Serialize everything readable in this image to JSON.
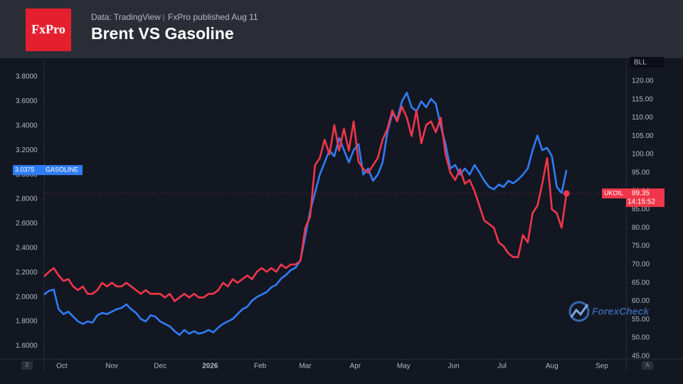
{
  "header": {
    "logo": "FxPro",
    "source": "Data: TradingView",
    "publisher": "FxPro published Aug 11"
  },
  "chart_data": {
    "type": "line",
    "title": "Brent VS Gasoline",
    "x": [
      -11,
      -8,
      -5,
      -2,
      1,
      4,
      7,
      10,
      13,
      16,
      19,
      22,
      25,
      28,
      31,
      34,
      37,
      40,
      43,
      46,
      49,
      52,
      55,
      58,
      61,
      64,
      67,
      70,
      73,
      76,
      79,
      82,
      85,
      88,
      91,
      94,
      97,
      100,
      103,
      106,
      109,
      112,
      115,
      118,
      121,
      124,
      127,
      130,
      133,
      136,
      139,
      142,
      145,
      148,
      151,
      154,
      157,
      160,
      163,
      166,
      169,
      172,
      175,
      178,
      181,
      184,
      187,
      190,
      193,
      196,
      199,
      202,
      205,
      208,
      211,
      214,
      217,
      220,
      223,
      226,
      229,
      232,
      235,
      238,
      241,
      244,
      247,
      250,
      253,
      256,
      259,
      262,
      265,
      268,
      271,
      274,
      277,
      280,
      283,
      286,
      289,
      292,
      295,
      298,
      301,
      304,
      307,
      310,
      313
    ],
    "xlim": [
      -11,
      350
    ],
    "xticks": [
      {
        "value": 0,
        "label": "Oct"
      },
      {
        "value": 31,
        "label": "Nov"
      },
      {
        "value": 61,
        "label": "Dec"
      },
      {
        "value": 92,
        "label": "2026"
      },
      {
        "value": 123,
        "label": "Feb"
      },
      {
        "value": 151,
        "label": "Mar"
      },
      {
        "value": 182,
        "label": "Apr"
      },
      {
        "value": 212,
        "label": "May"
      },
      {
        "value": 243,
        "label": "Jun"
      },
      {
        "value": 273,
        "label": "Jul"
      },
      {
        "value": 304,
        "label": "Aug"
      },
      {
        "value": 335,
        "label": "Sep"
      }
    ],
    "ylim": [
      1.492,
      3.934
    ],
    "yticks": [
      {
        "value": 1.6,
        "label": "1.6000"
      },
      {
        "value": 1.8,
        "label": "1.8000"
      },
      {
        "value": 2.0,
        "label": "2.0000"
      },
      {
        "value": 2.2,
        "label": "2.2000"
      },
      {
        "value": 2.4,
        "label": "2.4000"
      },
      {
        "value": 2.6,
        "label": "2.6000"
      },
      {
        "value": 2.8,
        "label": "2.8000"
      },
      {
        "value": 3.0,
        "label": "3.0000"
      },
      {
        "value": 3.2,
        "label": "3.2000"
      },
      {
        "value": 3.4,
        "label": "3.4000"
      },
      {
        "value": 3.6,
        "label": "3.6000"
      },
      {
        "value": 3.8,
        "label": "3.8000"
      }
    ],
    "y2lim": [
      44.2,
      125.6
    ],
    "y2ticks": [
      {
        "value": 45,
        "label": "45.00"
      },
      {
        "value": 50,
        "label": "50.00"
      },
      {
        "value": 55,
        "label": "55.00"
      },
      {
        "value": 60,
        "label": "60.00"
      },
      {
        "value": 65,
        "label": "65.00"
      },
      {
        "value": 70,
        "label": "70.00"
      },
      {
        "value": 75,
        "label": "75.00"
      },
      {
        "value": 80,
        "label": "80.00"
      },
      {
        "value": 85,
        "label": "85.00"
      },
      {
        "value": 90,
        "label": "90.00"
      },
      {
        "value": 95,
        "label": "95.00"
      },
      {
        "value": 100,
        "label": "100.00"
      },
      {
        "value": 105,
        "label": "105.00"
      },
      {
        "value": 110,
        "label": "110.00"
      },
      {
        "value": 115,
        "label": "115.00"
      },
      {
        "value": 120,
        "label": "120.00"
      }
    ],
    "y2_label": "BLL",
    "grid": false,
    "series": [
      {
        "name": "GASOLINE",
        "color": "#2f7df6",
        "values": [
          2.02,
          2.05,
          2.06,
          1.9,
          1.86,
          1.88,
          1.84,
          1.8,
          1.78,
          1.8,
          1.79,
          1.85,
          1.87,
          1.86,
          1.88,
          1.9,
          1.91,
          1.94,
          1.9,
          1.87,
          1.82,
          1.8,
          1.85,
          1.84,
          1.8,
          1.78,
          1.76,
          1.72,
          1.69,
          1.73,
          1.7,
          1.72,
          1.7,
          1.71,
          1.73,
          1.71,
          1.75,
          1.78,
          1.8,
          1.82,
          1.86,
          1.9,
          1.92,
          1.97,
          2.0,
          2.02,
          2.04,
          2.08,
          2.1,
          2.15,
          2.18,
          2.22,
          2.24,
          2.3,
          2.5,
          2.7,
          2.85,
          3.0,
          3.1,
          3.2,
          3.15,
          3.3,
          3.2,
          3.1,
          3.2,
          3.25,
          3.0,
          3.05,
          2.95,
          3.0,
          3.1,
          3.35,
          3.5,
          3.45,
          3.6,
          3.67,
          3.55,
          3.52,
          3.6,
          3.55,
          3.62,
          3.58,
          3.4,
          3.25,
          3.05,
          3.08,
          3.0,
          3.05,
          3.0,
          3.08,
          3.02,
          2.95,
          2.9,
          2.88,
          2.92,
          2.9,
          2.95,
          2.93,
          2.96,
          3.0,
          3.05,
          3.2,
          3.32,
          3.2,
          3.22,
          3.15,
          2.9,
          2.85,
          3.0375
        ]
      },
      {
        "name": "UKOIL",
        "color": "#f0364a",
        "axis": "y2",
        "values": [
          66.7,
          68,
          69,
          67,
          65.5,
          66,
          64,
          63,
          64,
          62,
          62,
          63,
          65,
          64,
          65,
          64,
          64,
          65,
          64,
          63,
          62,
          63,
          62,
          62,
          62,
          61,
          62,
          60,
          61,
          62,
          61,
          62,
          61,
          61,
          62,
          62,
          63,
          65,
          64,
          66,
          65,
          66,
          67,
          66,
          68,
          69,
          68,
          69,
          68,
          70,
          69,
          70,
          70,
          71,
          80,
          83,
          97,
          99,
          104,
          100,
          108,
          101,
          107,
          101,
          109,
          98,
          96,
          95,
          97,
          99,
          104,
          107,
          112,
          109,
          113,
          110,
          105,
          112,
          103,
          108,
          109,
          106,
          110,
          100,
          95,
          93,
          96,
          92,
          93,
          90,
          86,
          82,
          81,
          80,
          76,
          75,
          73,
          72,
          72,
          78,
          76,
          84,
          86,
          92,
          99,
          85,
          84,
          80,
          89.35
        ]
      }
    ],
    "countdown": "14:15:52",
    "watermark": "ForexCheck"
  },
  "controls": {
    "left": "Z",
    "right": "A"
  }
}
